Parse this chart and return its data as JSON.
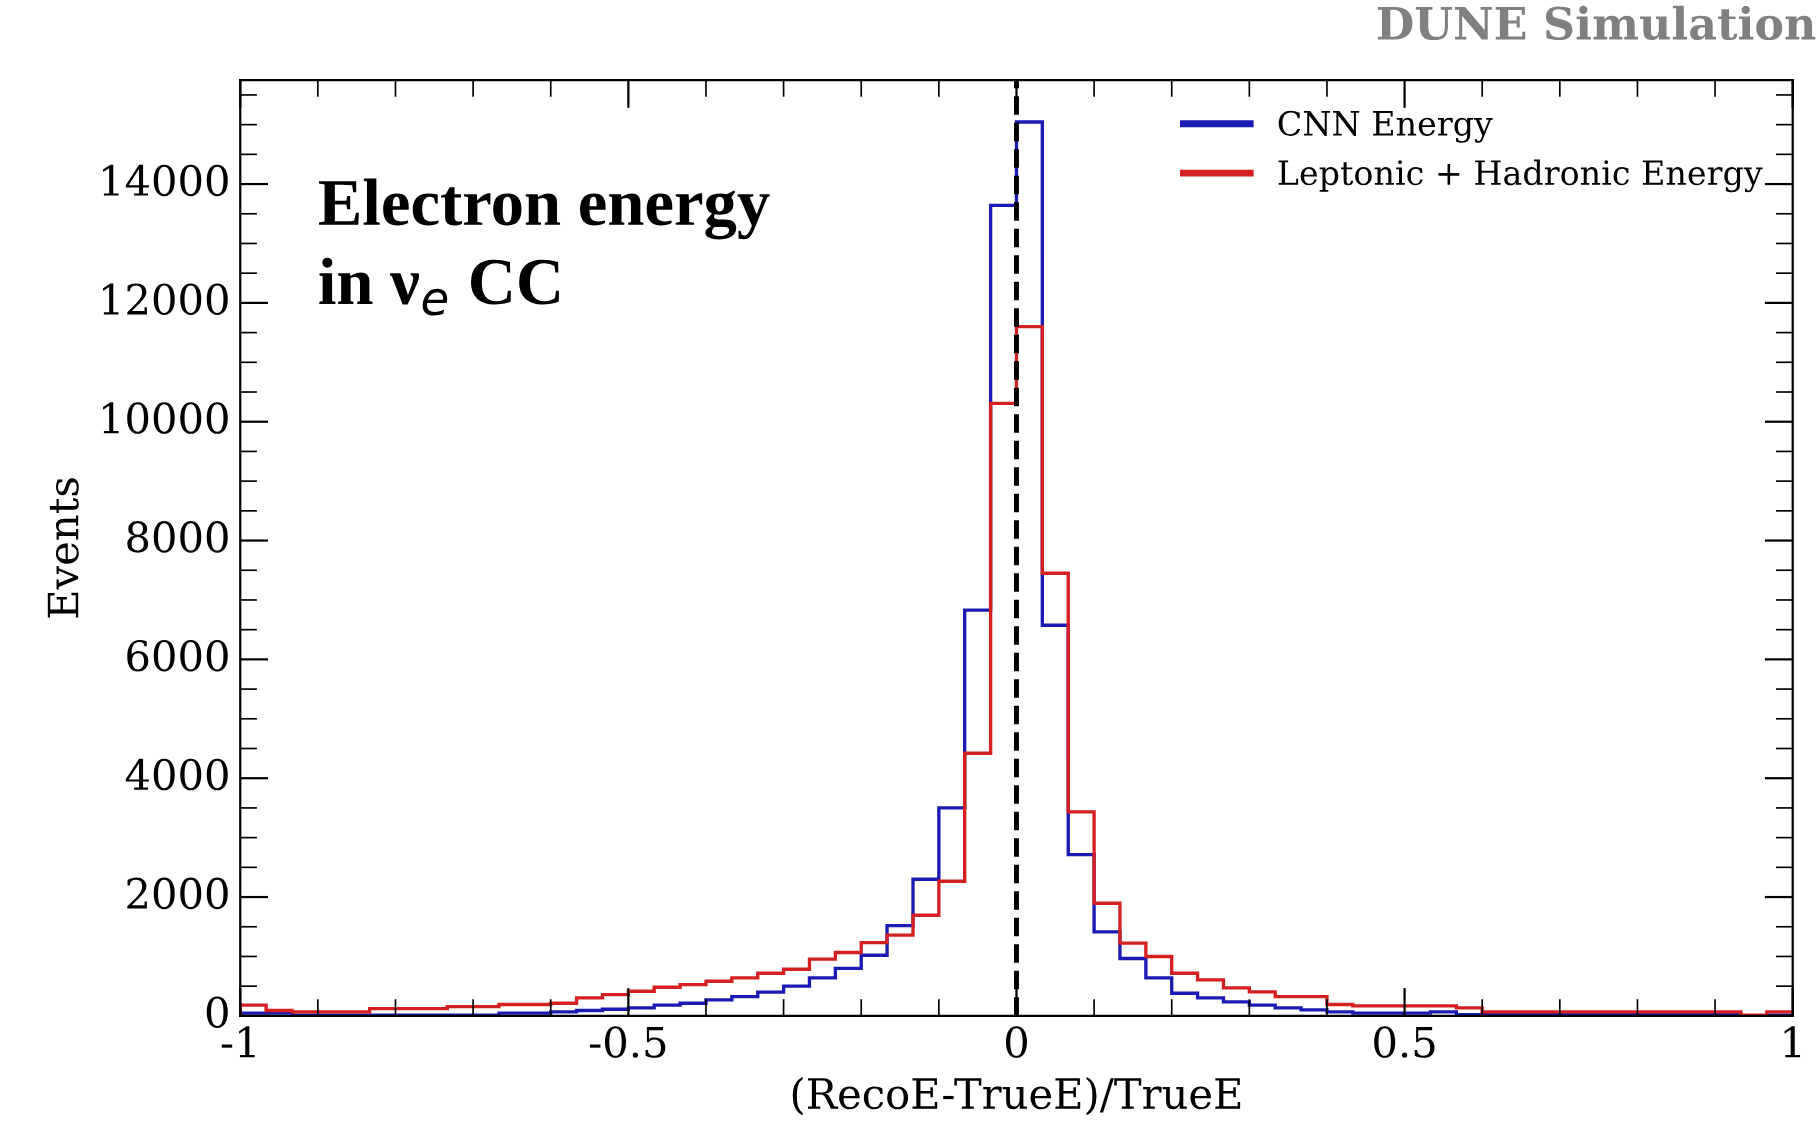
{
  "chart_data": {
    "type": "histogram",
    "xlabel": "(RecoE-TrueE)/TrueE",
    "ylabel": "Events",
    "bins": [
      -1.0,
      -0.9667,
      -0.9333,
      -0.9,
      -0.8667,
      -0.8333,
      -0.8,
      -0.7667,
      -0.7333,
      -0.7,
      -0.6667,
      -0.6333,
      -0.6,
      -0.5667,
      -0.5333,
      -0.5,
      -0.4667,
      -0.4333,
      -0.4,
      -0.3667,
      -0.3333,
      -0.3,
      -0.2667,
      -0.2333,
      -0.2,
      -0.1667,
      -0.1333,
      -0.1,
      -0.0667,
      -0.0333,
      0.0,
      0.0333,
      0.0667,
      0.1,
      0.1333,
      0.1667,
      0.2,
      0.2333,
      0.2667,
      0.3,
      0.3333,
      0.3667,
      0.4,
      0.4333,
      0.4667,
      0.5,
      0.5333,
      0.5667,
      0.6,
      0.6333,
      0.6667,
      0.7,
      0.7333,
      0.7667,
      0.8,
      0.8333,
      0.8667,
      0.9,
      0.9333,
      0.9667,
      1.0
    ],
    "series": [
      {
        "name": "CNN Energy",
        "color": "#1a1ab4",
        "values": [
          45,
          45,
          11,
          11,
          11,
          11,
          11,
          11,
          11,
          11,
          45,
          45,
          67,
          90,
          112,
          135,
          180,
          213,
          269,
          325,
          400,
          500,
          640,
          800,
          1020,
          1520,
          2300,
          3500,
          6830,
          13640,
          15045,
          6575,
          2715,
          1414,
          965,
          640,
          381,
          303,
          236,
          180,
          135,
          101,
          67,
          45,
          45,
          45,
          67,
          22,
          22,
          22,
          22,
          22,
          22,
          22,
          22,
          22,
          22,
          22,
          0,
          11
        ]
      },
      {
        "name": "Leptonic + Hadronic Energy",
        "color": "#d42020",
        "values": [
          180,
          90,
          67,
          67,
          67,
          123,
          123,
          123,
          157,
          157,
          191,
          191,
          213,
          303,
          359,
          415,
          482,
          527,
          583,
          640,
          718,
          785,
          954,
          1066,
          1234,
          1358,
          1694,
          2266,
          4420,
          10310,
          11600,
          7450,
          3433,
          1896,
          1223,
          999,
          718,
          606,
          471,
          404,
          325,
          325,
          191,
          168,
          168,
          168,
          168,
          135,
          67,
          67,
          67,
          67,
          67,
          67,
          67,
          67,
          67,
          67,
          11,
          67
        ]
      }
    ],
    "xlim": [
      -1,
      1
    ],
    "ylim": [
      0,
      15750
    ],
    "xticks": [
      -1,
      -0.5,
      0,
      0.5,
      1
    ],
    "yticks": [
      0,
      2000,
      4000,
      6000,
      8000,
      10000,
      12000,
      14000
    ],
    "ref_lines": [
      {
        "axis": "x",
        "value": 0,
        "color": "#000000",
        "line_style": "dashed"
      }
    ],
    "annotations": [
      "DUNE Simulation",
      "Electron energy\nin ν$_{e}$ CC"
    ],
    "legend": "top right",
    "grid": false
  }
}
